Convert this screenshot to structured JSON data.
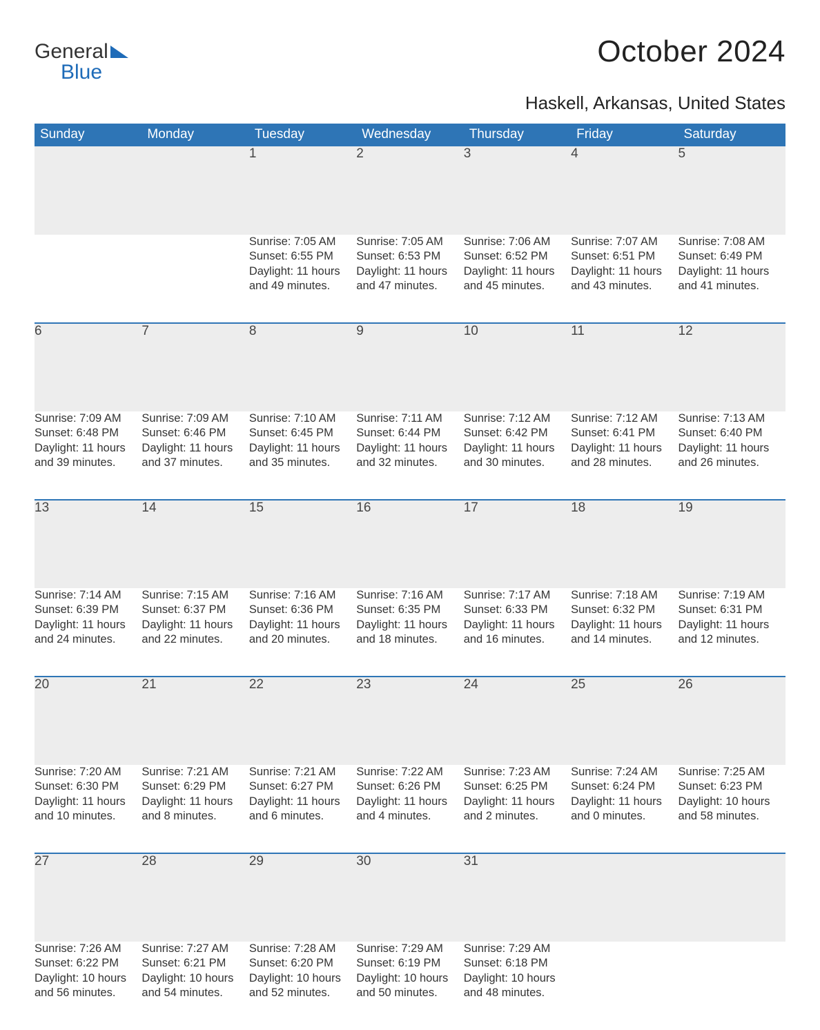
{
  "logo": {
    "word1": "General",
    "word2": "Blue",
    "sail_color": "#1e6bb8"
  },
  "title": "October 2024",
  "location": "Haskell, Arkansas, United States",
  "colors": {
    "header_bg": "#2e75b6",
    "header_text": "#ffffff",
    "daynum_bg": "#ededed",
    "row_border": "#2e75b6",
    "text": "#333333",
    "background": "#ffffff"
  },
  "day_headers": [
    "Sunday",
    "Monday",
    "Tuesday",
    "Wednesday",
    "Thursday",
    "Friday",
    "Saturday"
  ],
  "weeks": [
    [
      null,
      null,
      {
        "n": "1",
        "sunrise": "Sunrise: 7:05 AM",
        "sunset": "Sunset: 6:55 PM",
        "d1": "Daylight: 11 hours",
        "d2": "and 49 minutes."
      },
      {
        "n": "2",
        "sunrise": "Sunrise: 7:05 AM",
        "sunset": "Sunset: 6:53 PM",
        "d1": "Daylight: 11 hours",
        "d2": "and 47 minutes."
      },
      {
        "n": "3",
        "sunrise": "Sunrise: 7:06 AM",
        "sunset": "Sunset: 6:52 PM",
        "d1": "Daylight: 11 hours",
        "d2": "and 45 minutes."
      },
      {
        "n": "4",
        "sunrise": "Sunrise: 7:07 AM",
        "sunset": "Sunset: 6:51 PM",
        "d1": "Daylight: 11 hours",
        "d2": "and 43 minutes."
      },
      {
        "n": "5",
        "sunrise": "Sunrise: 7:08 AM",
        "sunset": "Sunset: 6:49 PM",
        "d1": "Daylight: 11 hours",
        "d2": "and 41 minutes."
      }
    ],
    [
      {
        "n": "6",
        "sunrise": "Sunrise: 7:09 AM",
        "sunset": "Sunset: 6:48 PM",
        "d1": "Daylight: 11 hours",
        "d2": "and 39 minutes."
      },
      {
        "n": "7",
        "sunrise": "Sunrise: 7:09 AM",
        "sunset": "Sunset: 6:46 PM",
        "d1": "Daylight: 11 hours",
        "d2": "and 37 minutes."
      },
      {
        "n": "8",
        "sunrise": "Sunrise: 7:10 AM",
        "sunset": "Sunset: 6:45 PM",
        "d1": "Daylight: 11 hours",
        "d2": "and 35 minutes."
      },
      {
        "n": "9",
        "sunrise": "Sunrise: 7:11 AM",
        "sunset": "Sunset: 6:44 PM",
        "d1": "Daylight: 11 hours",
        "d2": "and 32 minutes."
      },
      {
        "n": "10",
        "sunrise": "Sunrise: 7:12 AM",
        "sunset": "Sunset: 6:42 PM",
        "d1": "Daylight: 11 hours",
        "d2": "and 30 minutes."
      },
      {
        "n": "11",
        "sunrise": "Sunrise: 7:12 AM",
        "sunset": "Sunset: 6:41 PM",
        "d1": "Daylight: 11 hours",
        "d2": "and 28 minutes."
      },
      {
        "n": "12",
        "sunrise": "Sunrise: 7:13 AM",
        "sunset": "Sunset: 6:40 PM",
        "d1": "Daylight: 11 hours",
        "d2": "and 26 minutes."
      }
    ],
    [
      {
        "n": "13",
        "sunrise": "Sunrise: 7:14 AM",
        "sunset": "Sunset: 6:39 PM",
        "d1": "Daylight: 11 hours",
        "d2": "and 24 minutes."
      },
      {
        "n": "14",
        "sunrise": "Sunrise: 7:15 AM",
        "sunset": "Sunset: 6:37 PM",
        "d1": "Daylight: 11 hours",
        "d2": "and 22 minutes."
      },
      {
        "n": "15",
        "sunrise": "Sunrise: 7:16 AM",
        "sunset": "Sunset: 6:36 PM",
        "d1": "Daylight: 11 hours",
        "d2": "and 20 minutes."
      },
      {
        "n": "16",
        "sunrise": "Sunrise: 7:16 AM",
        "sunset": "Sunset: 6:35 PM",
        "d1": "Daylight: 11 hours",
        "d2": "and 18 minutes."
      },
      {
        "n": "17",
        "sunrise": "Sunrise: 7:17 AM",
        "sunset": "Sunset: 6:33 PM",
        "d1": "Daylight: 11 hours",
        "d2": "and 16 minutes."
      },
      {
        "n": "18",
        "sunrise": "Sunrise: 7:18 AM",
        "sunset": "Sunset: 6:32 PM",
        "d1": "Daylight: 11 hours",
        "d2": "and 14 minutes."
      },
      {
        "n": "19",
        "sunrise": "Sunrise: 7:19 AM",
        "sunset": "Sunset: 6:31 PM",
        "d1": "Daylight: 11 hours",
        "d2": "and 12 minutes."
      }
    ],
    [
      {
        "n": "20",
        "sunrise": "Sunrise: 7:20 AM",
        "sunset": "Sunset: 6:30 PM",
        "d1": "Daylight: 11 hours",
        "d2": "and 10 minutes."
      },
      {
        "n": "21",
        "sunrise": "Sunrise: 7:21 AM",
        "sunset": "Sunset: 6:29 PM",
        "d1": "Daylight: 11 hours",
        "d2": "and 8 minutes."
      },
      {
        "n": "22",
        "sunrise": "Sunrise: 7:21 AM",
        "sunset": "Sunset: 6:27 PM",
        "d1": "Daylight: 11 hours",
        "d2": "and 6 minutes."
      },
      {
        "n": "23",
        "sunrise": "Sunrise: 7:22 AM",
        "sunset": "Sunset: 6:26 PM",
        "d1": "Daylight: 11 hours",
        "d2": "and 4 minutes."
      },
      {
        "n": "24",
        "sunrise": "Sunrise: 7:23 AM",
        "sunset": "Sunset: 6:25 PM",
        "d1": "Daylight: 11 hours",
        "d2": "and 2 minutes."
      },
      {
        "n": "25",
        "sunrise": "Sunrise: 7:24 AM",
        "sunset": "Sunset: 6:24 PM",
        "d1": "Daylight: 11 hours",
        "d2": "and 0 minutes."
      },
      {
        "n": "26",
        "sunrise": "Sunrise: 7:25 AM",
        "sunset": "Sunset: 6:23 PM",
        "d1": "Daylight: 10 hours",
        "d2": "and 58 minutes."
      }
    ],
    [
      {
        "n": "27",
        "sunrise": "Sunrise: 7:26 AM",
        "sunset": "Sunset: 6:22 PM",
        "d1": "Daylight: 10 hours",
        "d2": "and 56 minutes."
      },
      {
        "n": "28",
        "sunrise": "Sunrise: 7:27 AM",
        "sunset": "Sunset: 6:21 PM",
        "d1": "Daylight: 10 hours",
        "d2": "and 54 minutes."
      },
      {
        "n": "29",
        "sunrise": "Sunrise: 7:28 AM",
        "sunset": "Sunset: 6:20 PM",
        "d1": "Daylight: 10 hours",
        "d2": "and 52 minutes."
      },
      {
        "n": "30",
        "sunrise": "Sunrise: 7:29 AM",
        "sunset": "Sunset: 6:19 PM",
        "d1": "Daylight: 10 hours",
        "d2": "and 50 minutes."
      },
      {
        "n": "31",
        "sunrise": "Sunrise: 7:29 AM",
        "sunset": "Sunset: 6:18 PM",
        "d1": "Daylight: 10 hours",
        "d2": "and 48 minutes."
      },
      null,
      null
    ]
  ]
}
